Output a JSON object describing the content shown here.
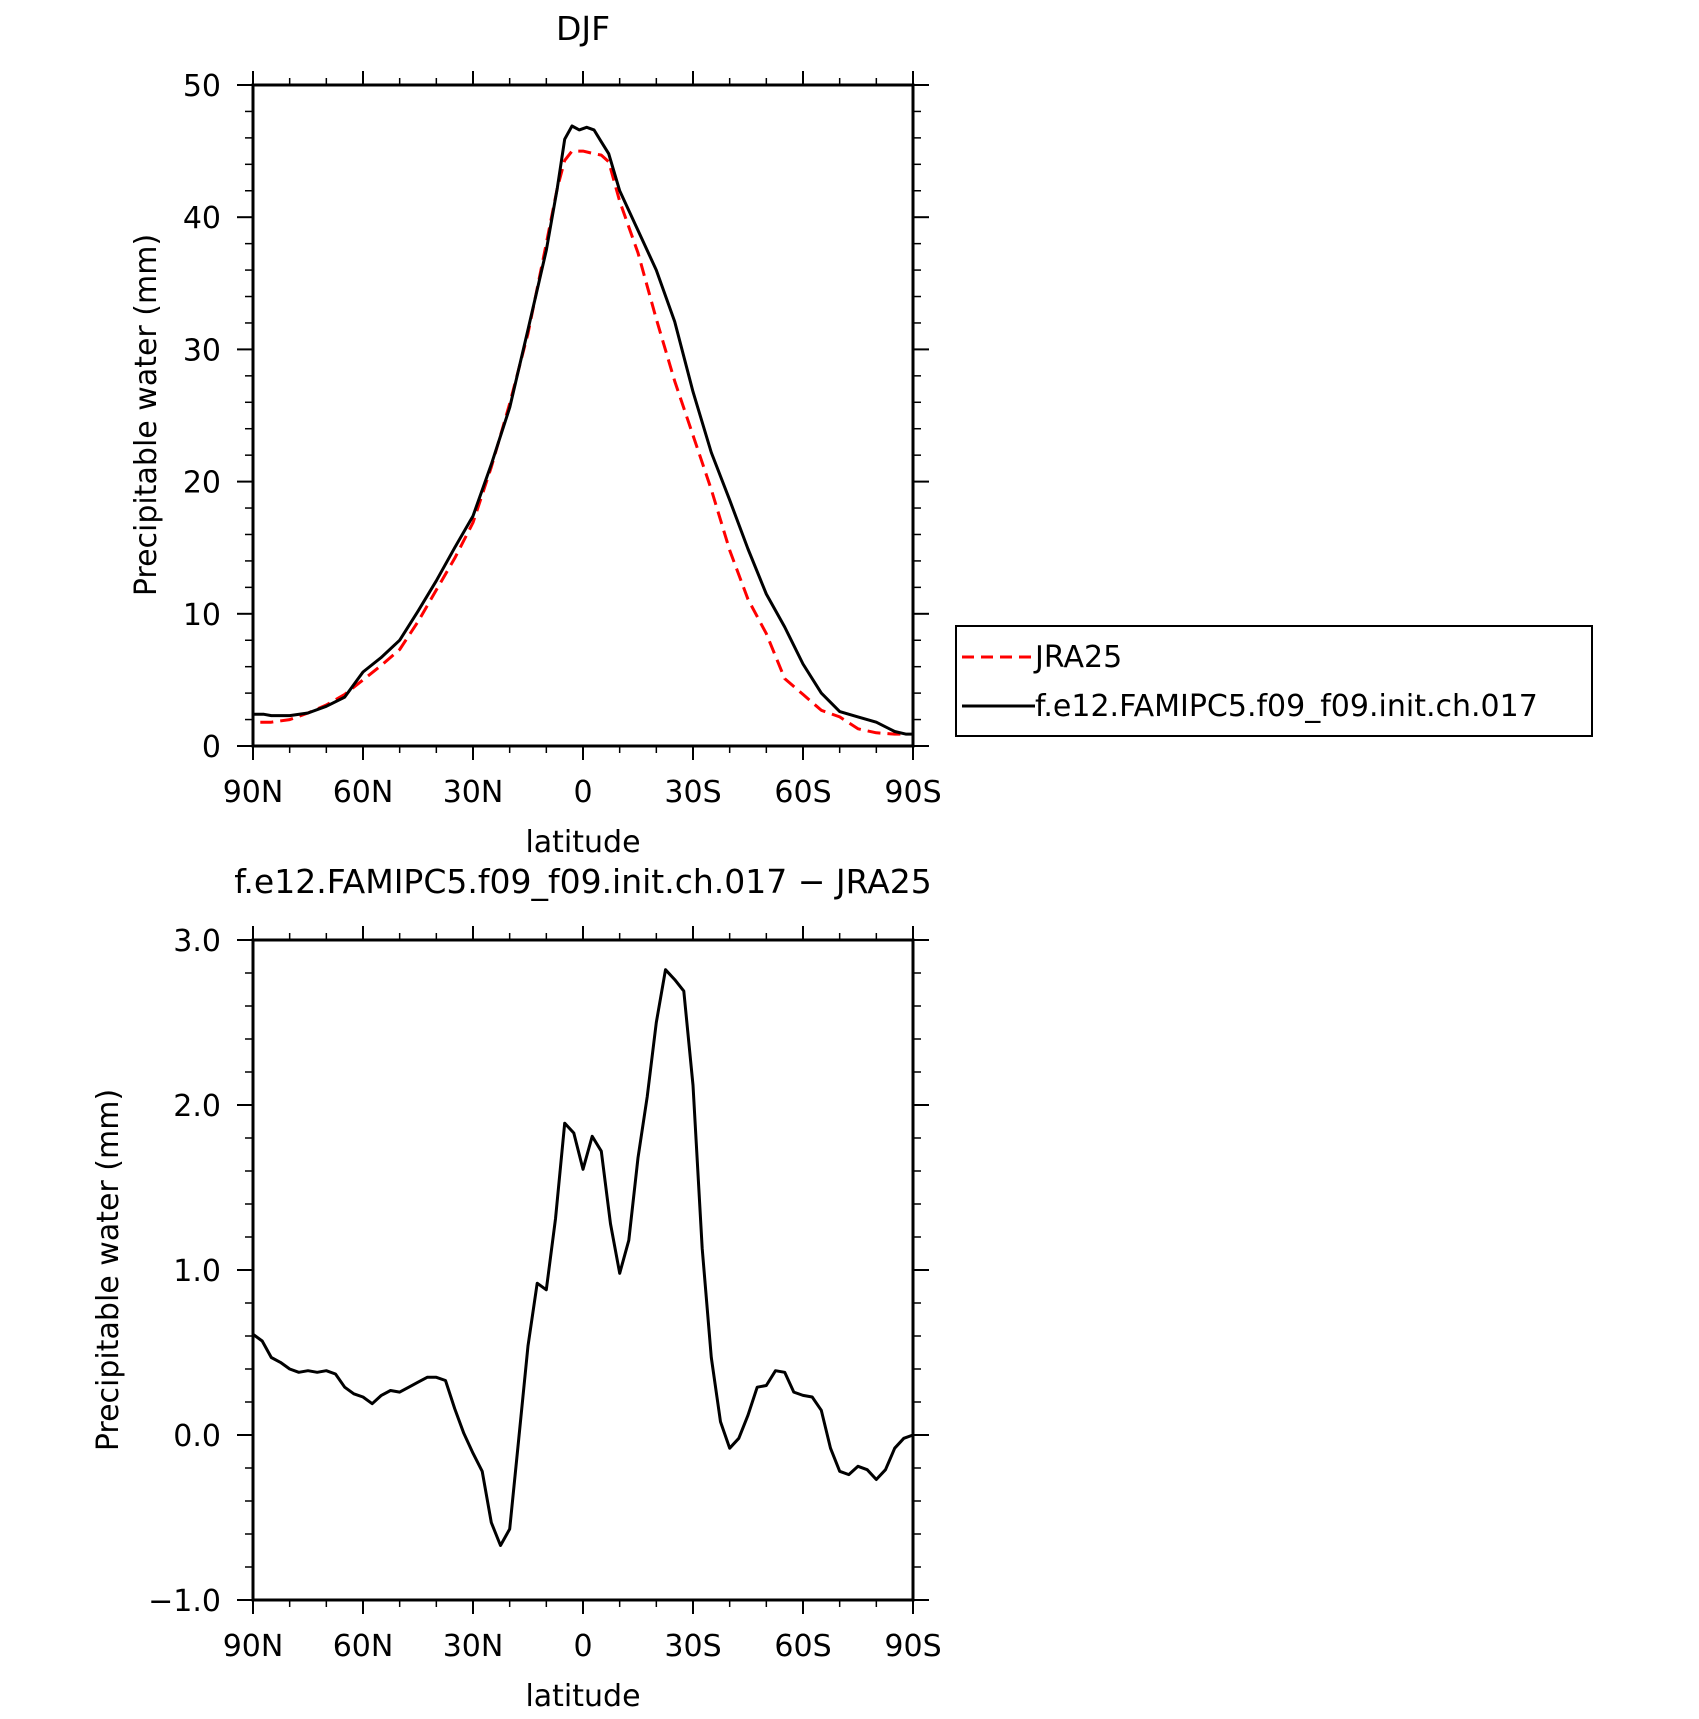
{
  "chart_data": [
    {
      "type": "line",
      "title": "DJF",
      "xlabel": "latitude",
      "ylabel": "Precipitable water (mm)",
      "xlim": [
        -90,
        90
      ],
      "ylim": [
        0,
        50
      ],
      "x_ticks": [
        -90,
        -60,
        -30,
        0,
        30,
        60,
        90
      ],
      "x_tick_labels": [
        "90N",
        "60N",
        "30N",
        "0",
        "30S",
        "60S",
        "90S"
      ],
      "y_ticks": [
        0,
        10,
        20,
        30,
        40,
        50
      ],
      "y_tick_labels": [
        "0",
        "10",
        "20",
        "30",
        "40",
        "50"
      ],
      "legend": {
        "position": "right",
        "entries": [
          "JRA25",
          "f.e12.FAMIPC5.f09_f09.init.ch.017"
        ]
      },
      "series": [
        {
          "name": "JRA25",
          "color": "#ff0000",
          "dash": "dashed",
          "x": [
            -88,
            -85,
            -80,
            -75,
            -70,
            -65,
            -60,
            -55,
            -50,
            -45,
            -40,
            -35,
            -30,
            -25,
            -20,
            -15,
            -10,
            -7,
            -5,
            -3,
            0,
            3,
            5,
            7,
            10,
            15,
            20,
            25,
            30,
            35,
            40,
            45,
            50,
            55,
            60,
            65,
            70,
            75,
            80,
            85,
            88
          ],
          "y": [
            1.8,
            1.8,
            2.0,
            2.5,
            3.1,
            3.9,
            5.0,
            6.1,
            7.3,
            9.4,
            11.8,
            14.2,
            16.9,
            21.1,
            25.9,
            31.2,
            38.0,
            42.2,
            44.3,
            45.0,
            45.0,
            44.8,
            44.7,
            44.2,
            41.2,
            37.3,
            32.3,
            27.6,
            23.5,
            19.4,
            14.8,
            11.1,
            8.5,
            5.1,
            3.9,
            2.7,
            2.2,
            1.3,
            1.0,
            0.9,
            0.9
          ],
          "x_interp_note": ""
        },
        {
          "name": "f.e12.FAMIPC5.f09_f09.init.ch.017",
          "color": "#000000",
          "dash": "solid",
          "x": [
            -90,
            -87,
            -85,
            -80,
            -75,
            -70,
            -65,
            -60,
            -55,
            -50,
            -45,
            -40,
            -35,
            -30,
            -25,
            -20,
            -15,
            -10,
            -7,
            -5,
            -3,
            -1,
            1,
            3,
            5,
            7,
            10,
            15,
            20,
            25,
            30,
            35,
            40,
            45,
            50,
            55,
            60,
            65,
            70,
            75,
            80,
            85,
            88,
            90
          ],
          "y": [
            2.4,
            2.4,
            2.3,
            2.3,
            2.5,
            3.0,
            3.7,
            5.6,
            6.7,
            8.0,
            10.2,
            12.5,
            15.0,
            17.4,
            21.3,
            25.6,
            31.5,
            37.5,
            42.2,
            45.9,
            46.9,
            46.6,
            46.8,
            46.6,
            45.7,
            44.8,
            42.0,
            39.0,
            36.0,
            32.1,
            26.8,
            22.2,
            18.6,
            14.9,
            11.5,
            9.0,
            6.2,
            4.0,
            2.6,
            2.2,
            1.8,
            1.1,
            0.9,
            0.9
          ]
        }
      ]
    },
    {
      "type": "line",
      "title": "f.e12.FAMIPC5.f09_f09.init.ch.017 − JRA25",
      "xlabel": "latitude",
      "ylabel": "Precipitable water (mm)",
      "xlim": [
        -90,
        90
      ],
      "ylim": [
        -1.0,
        3.0
      ],
      "x_ticks": [
        -90,
        -60,
        -30,
        0,
        30,
        60,
        90
      ],
      "x_tick_labels": [
        "90N",
        "60N",
        "30N",
        "0",
        "30S",
        "60S",
        "90S"
      ],
      "y_ticks": [
        -1.0,
        0.0,
        1.0,
        2.0,
        3.0
      ],
      "y_tick_labels": [
        "−1.0",
        "0.0",
        "1.0",
        "2.0",
        "3.0"
      ],
      "series": [
        {
          "color": "#000000",
          "dash": "solid",
          "x": [
            -90,
            -87.5,
            -85,
            -82.5,
            -80,
            -77.5,
            -75,
            -72.5,
            -70,
            -67.5,
            -65,
            -62.5,
            -60,
            -57.5,
            -55,
            -52.5,
            -50,
            -47.5,
            -45,
            -42.5,
            -40,
            -37.5,
            -35,
            -32.5,
            -30,
            -27.5,
            -25,
            -22.5,
            -20,
            -17.5,
            -15,
            -12.5,
            -10,
            -7.5,
            -5,
            -2.5,
            0,
            2.5,
            5,
            7.5,
            10,
            12.5,
            15,
            17.5,
            20,
            22.5,
            25,
            27.5,
            30,
            32.5,
            35,
            37.5,
            40,
            42.5,
            45,
            47.5,
            50,
            52.5,
            55,
            57.5,
            60,
            62.5,
            65,
            67.5,
            70,
            72.5,
            75,
            77.5,
            80,
            82.5,
            85,
            87.5,
            90
          ],
          "y": [
            0.61,
            0.57,
            0.47,
            0.44,
            0.4,
            0.38,
            0.39,
            0.38,
            0.39,
            0.37,
            0.29,
            0.25,
            0.23,
            0.19,
            0.24,
            0.27,
            0.26,
            0.29,
            0.32,
            0.35,
            0.35,
            0.33,
            0.16,
            0.01,
            -0.11,
            -0.22,
            -0.53,
            -0.67,
            -0.57,
            -0.02,
            0.54,
            0.92,
            0.88,
            1.31,
            1.89,
            1.83,
            1.61,
            1.81,
            1.72,
            1.28,
            0.98,
            1.18,
            1.68,
            2.05,
            2.5,
            2.82,
            2.76,
            2.69,
            2.12,
            1.13,
            0.47,
            0.08,
            -0.08,
            -0.02,
            0.12,
            0.29,
            0.3,
            0.39,
            0.38,
            0.26,
            0.24,
            0.23,
            0.15,
            -0.08,
            -0.22,
            -0.24,
            -0.19,
            -0.21,
            -0.27,
            -0.21,
            -0.08,
            -0.02,
            0.0
          ]
        }
      ]
    }
  ]
}
